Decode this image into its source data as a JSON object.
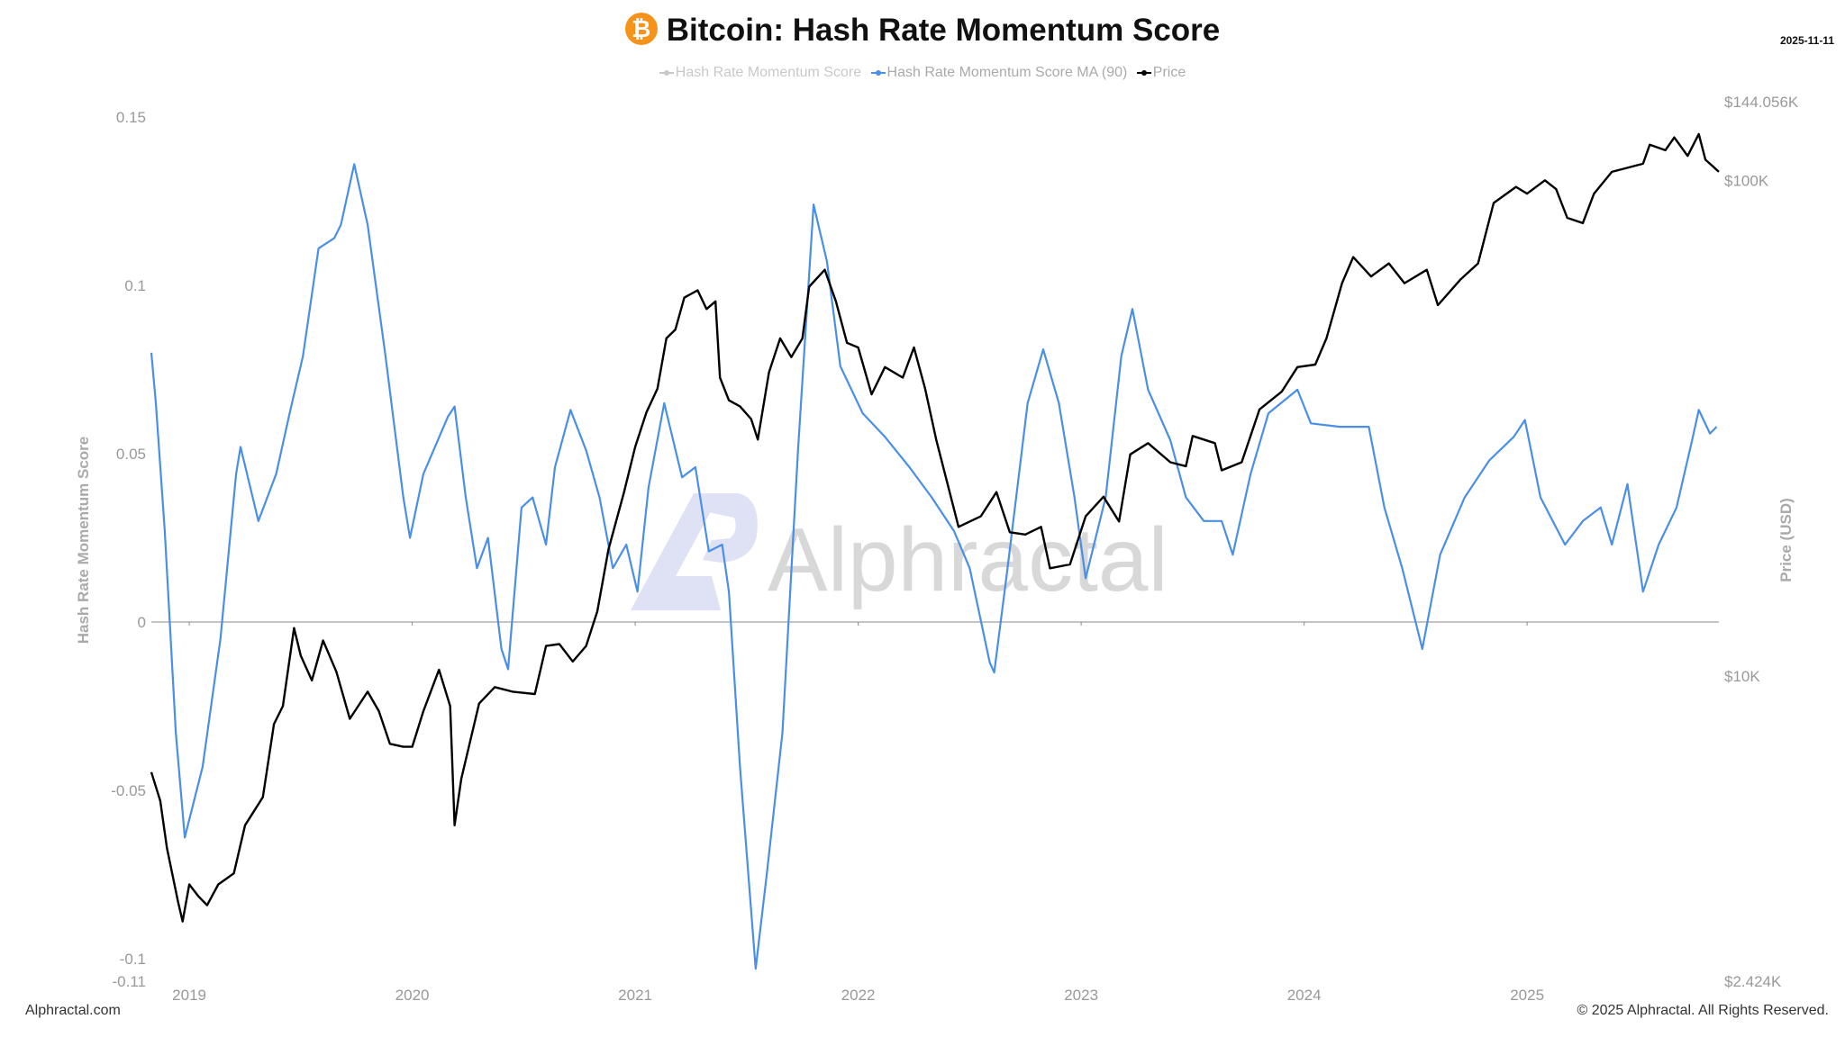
{
  "header": {
    "title": "Bitcoin: Hash Rate Momentum Score",
    "icon": "bitcoin-icon",
    "icon_glyph": "₿",
    "date": "2025-11-11"
  },
  "footer": {
    "left": "Alphractal.com",
    "right": "© 2025 Alphractal. All Rights Reserved."
  },
  "watermark": {
    "text": "Alphractal"
  },
  "colors": {
    "ma": "#4a8fe7",
    "price": "#000000",
    "score_disabled": "#c8c8c8",
    "axis_text": "#999999",
    "zero_line": "#888888"
  },
  "chart_data": {
    "type": "line",
    "title": "Bitcoin: Hash Rate Momentum Score",
    "legend": [
      {
        "name": "Hash Rate Momentum Score",
        "state": "hidden"
      },
      {
        "name": "Hash Rate Momentum Score MA (90)",
        "state": "visible"
      },
      {
        "name": "Price",
        "state": "visible"
      }
    ],
    "legend_position": "top-center",
    "xlabel": "",
    "ylabel": "Hash Rate Momentum Score",
    "ylabel_right": "Price (USD)",
    "xlim": [
      2018.83,
      2025.86
    ],
    "ylim": [
      -0.11,
      0.15
    ],
    "ylim_right": [
      2424,
      144056
    ],
    "y_right_scale": "log",
    "x_ticks": [
      "2019",
      "2020",
      "2021",
      "2022",
      "2023",
      "2024",
      "2025"
    ],
    "y_ticks": [
      "0.15",
      "0.1",
      "0.05",
      "0",
      "-0.05",
      "-0.1",
      "-0.11"
    ],
    "y_right_ticks": [
      "$144.056K",
      "$100K",
      "$10K",
      "$2.424K"
    ],
    "grid": false,
    "series": [
      {
        "name": "Hash Rate Momentum Score MA (90)",
        "axis": "left",
        "points": [
          [
            2018.83,
            0.08
          ],
          [
            2018.85,
            0.065
          ],
          [
            2018.89,
            0.027
          ],
          [
            2018.94,
            -0.033
          ],
          [
            2018.98,
            -0.064
          ],
          [
            2019.06,
            -0.043
          ],
          [
            2019.14,
            -0.005
          ],
          [
            2019.21,
            0.044
          ],
          [
            2019.23,
            0.052
          ],
          [
            2019.31,
            0.03
          ],
          [
            2019.39,
            0.044
          ],
          [
            2019.45,
            0.062
          ],
          [
            2019.51,
            0.079
          ],
          [
            2019.58,
            0.111
          ],
          [
            2019.65,
            0.114
          ],
          [
            2019.68,
            0.118
          ],
          [
            2019.74,
            0.136
          ],
          [
            2019.8,
            0.118
          ],
          [
            2019.88,
            0.079
          ],
          [
            2019.96,
            0.037
          ],
          [
            2019.99,
            0.025
          ],
          [
            2020.05,
            0.044
          ],
          [
            2020.16,
            0.061
          ],
          [
            2020.19,
            0.064
          ],
          [
            2020.24,
            0.037
          ],
          [
            2020.29,
            0.016
          ],
          [
            2020.34,
            0.025
          ],
          [
            2020.4,
            -0.008
          ],
          [
            2020.43,
            -0.014
          ],
          [
            2020.49,
            0.034
          ],
          [
            2020.54,
            0.037
          ],
          [
            2020.6,
            0.023
          ],
          [
            2020.64,
            0.046
          ],
          [
            2020.71,
            0.063
          ],
          [
            2020.78,
            0.051
          ],
          [
            2020.84,
            0.037
          ],
          [
            2020.9,
            0.016
          ],
          [
            2020.96,
            0.023
          ],
          [
            2021.01,
            0.009
          ],
          [
            2021.06,
            0.04
          ],
          [
            2021.13,
            0.065
          ],
          [
            2021.21,
            0.043
          ],
          [
            2021.27,
            0.046
          ],
          [
            2021.33,
            0.021
          ],
          [
            2021.39,
            0.023
          ],
          [
            2021.42,
            0.009
          ],
          [
            2021.47,
            -0.043
          ],
          [
            2021.54,
            -0.103
          ],
          [
            2021.59,
            -0.075
          ],
          [
            2021.66,
            -0.033
          ],
          [
            2021.73,
            0.051
          ],
          [
            2021.8,
            0.124
          ],
          [
            2021.86,
            0.107
          ],
          [
            2021.92,
            0.076
          ],
          [
            2022.02,
            0.062
          ],
          [
            2022.12,
            0.055
          ],
          [
            2022.23,
            0.046
          ],
          [
            2022.33,
            0.037
          ],
          [
            2022.43,
            0.027
          ],
          [
            2022.5,
            0.016
          ],
          [
            2022.59,
            -0.012
          ],
          [
            2022.61,
            -0.015
          ],
          [
            2022.67,
            0.016
          ],
          [
            2022.76,
            0.065
          ],
          [
            2022.83,
            0.081
          ],
          [
            2022.9,
            0.065
          ],
          [
            2022.97,
            0.037
          ],
          [
            2023.02,
            0.013
          ],
          [
            2023.11,
            0.037
          ],
          [
            2023.18,
            0.079
          ],
          [
            2023.23,
            0.093
          ],
          [
            2023.3,
            0.069
          ],
          [
            2023.4,
            0.054
          ],
          [
            2023.47,
            0.037
          ],
          [
            2023.55,
            0.03
          ],
          [
            2023.63,
            0.03
          ],
          [
            2023.68,
            0.02
          ],
          [
            2023.76,
            0.044
          ],
          [
            2023.84,
            0.062
          ],
          [
            2023.97,
            0.069
          ],
          [
            2024.03,
            0.059
          ],
          [
            2024.16,
            0.058
          ],
          [
            2024.29,
            0.058
          ],
          [
            2024.36,
            0.034
          ],
          [
            2024.44,
            0.016
          ],
          [
            2024.53,
            -0.008
          ],
          [
            2024.61,
            0.02
          ],
          [
            2024.72,
            0.037
          ],
          [
            2024.83,
            0.048
          ],
          [
            2024.94,
            0.055
          ],
          [
            2024.99,
            0.06
          ],
          [
            2025.06,
            0.037
          ],
          [
            2025.17,
            0.023
          ],
          [
            2025.25,
            0.03
          ],
          [
            2025.33,
            0.034
          ],
          [
            2025.38,
            0.023
          ],
          [
            2025.45,
            0.041
          ],
          [
            2025.52,
            0.009
          ],
          [
            2025.59,
            0.023
          ],
          [
            2025.67,
            0.034
          ],
          [
            2025.74,
            0.054
          ],
          [
            2025.77,
            0.063
          ],
          [
            2025.82,
            0.056
          ],
          [
            2025.85,
            0.058
          ]
        ]
      },
      {
        "name": "Price",
        "axis": "right",
        "points": [
          [
            2018.83,
            6400
          ],
          [
            2018.87,
            5600
          ],
          [
            2018.9,
            4500
          ],
          [
            2018.95,
            3500
          ],
          [
            2018.97,
            3200
          ],
          [
            2019.0,
            3800
          ],
          [
            2019.04,
            3600
          ],
          [
            2019.08,
            3450
          ],
          [
            2019.13,
            3800
          ],
          [
            2019.2,
            4000
          ],
          [
            2019.25,
            5000
          ],
          [
            2019.33,
            5700
          ],
          [
            2019.38,
            8000
          ],
          [
            2019.42,
            8700
          ],
          [
            2019.47,
            12500
          ],
          [
            2019.5,
            11000
          ],
          [
            2019.55,
            9800
          ],
          [
            2019.6,
            11800
          ],
          [
            2019.66,
            10200
          ],
          [
            2019.72,
            8200
          ],
          [
            2019.8,
            9300
          ],
          [
            2019.85,
            8500
          ],
          [
            2019.9,
            7300
          ],
          [
            2019.96,
            7200
          ],
          [
            2020.0,
            7200
          ],
          [
            2020.05,
            8500
          ],
          [
            2020.12,
            10300
          ],
          [
            2020.17,
            8700
          ],
          [
            2020.19,
            5000
          ],
          [
            2020.22,
            6200
          ],
          [
            2020.3,
            8800
          ],
          [
            2020.37,
            9500
          ],
          [
            2020.45,
            9300
          ],
          [
            2020.55,
            9200
          ],
          [
            2020.6,
            11500
          ],
          [
            2020.66,
            11600
          ],
          [
            2020.72,
            10700
          ],
          [
            2020.78,
            11500
          ],
          [
            2020.83,
            13500
          ],
          [
            2020.88,
            18000
          ],
          [
            2020.95,
            23500
          ],
          [
            2021.0,
            29000
          ],
          [
            2021.05,
            34000
          ],
          [
            2021.1,
            38000
          ],
          [
            2021.14,
            48000
          ],
          [
            2021.18,
            50000
          ],
          [
            2021.22,
            58000
          ],
          [
            2021.28,
            60000
          ],
          [
            2021.32,
            55000
          ],
          [
            2021.36,
            57000
          ],
          [
            2021.38,
            40000
          ],
          [
            2021.42,
            36000
          ],
          [
            2021.47,
            35000
          ],
          [
            2021.52,
            33000
          ],
          [
            2021.55,
            30000
          ],
          [
            2021.6,
            41000
          ],
          [
            2021.65,
            48000
          ],
          [
            2021.7,
            44000
          ],
          [
            2021.75,
            48000
          ],
          [
            2021.78,
            61000
          ],
          [
            2021.85,
            66000
          ],
          [
            2021.9,
            57000
          ],
          [
            2021.95,
            47000
          ],
          [
            2022.0,
            46000
          ],
          [
            2022.06,
            37000
          ],
          [
            2022.12,
            42000
          ],
          [
            2022.2,
            40000
          ],
          [
            2022.25,
            46000
          ],
          [
            2022.3,
            38000
          ],
          [
            2022.35,
            30000
          ],
          [
            2022.45,
            20000
          ],
          [
            2022.55,
            21000
          ],
          [
            2022.62,
            23500
          ],
          [
            2022.68,
            19500
          ],
          [
            2022.75,
            19300
          ],
          [
            2022.82,
            20000
          ],
          [
            2022.86,
            16500
          ],
          [
            2022.95,
            16800
          ],
          [
            2023.02,
            21000
          ],
          [
            2023.1,
            23000
          ],
          [
            2023.17,
            20500
          ],
          [
            2023.22,
            28000
          ],
          [
            2023.3,
            29500
          ],
          [
            2023.4,
            27000
          ],
          [
            2023.47,
            26500
          ],
          [
            2023.5,
            30500
          ],
          [
            2023.6,
            29500
          ],
          [
            2023.63,
            26000
          ],
          [
            2023.72,
            27000
          ],
          [
            2023.8,
            34500
          ],
          [
            2023.9,
            37500
          ],
          [
            2023.97,
            42000
          ],
          [
            2024.05,
            42500
          ],
          [
            2024.1,
            48000
          ],
          [
            2024.17,
            62000
          ],
          [
            2024.22,
            70000
          ],
          [
            2024.3,
            64000
          ],
          [
            2024.38,
            68000
          ],
          [
            2024.45,
            62000
          ],
          [
            2024.55,
            66000
          ],
          [
            2024.6,
            56000
          ],
          [
            2024.7,
            63000
          ],
          [
            2024.78,
            68000
          ],
          [
            2024.85,
            90000
          ],
          [
            2024.95,
            97000
          ],
          [
            2025.0,
            94000
          ],
          [
            2025.08,
            100000
          ],
          [
            2025.13,
            96000
          ],
          [
            2025.18,
            84000
          ],
          [
            2025.25,
            82000
          ],
          [
            2025.3,
            94000
          ],
          [
            2025.38,
            104000
          ],
          [
            2025.45,
            106000
          ],
          [
            2025.52,
            108000
          ],
          [
            2025.55,
            118000
          ],
          [
            2025.62,
            115000
          ],
          [
            2025.66,
            122000
          ],
          [
            2025.72,
            112000
          ],
          [
            2025.77,
            124000
          ],
          [
            2025.8,
            110000
          ],
          [
            2025.83,
            107000
          ],
          [
            2025.86,
            104000
          ]
        ]
      }
    ]
  }
}
